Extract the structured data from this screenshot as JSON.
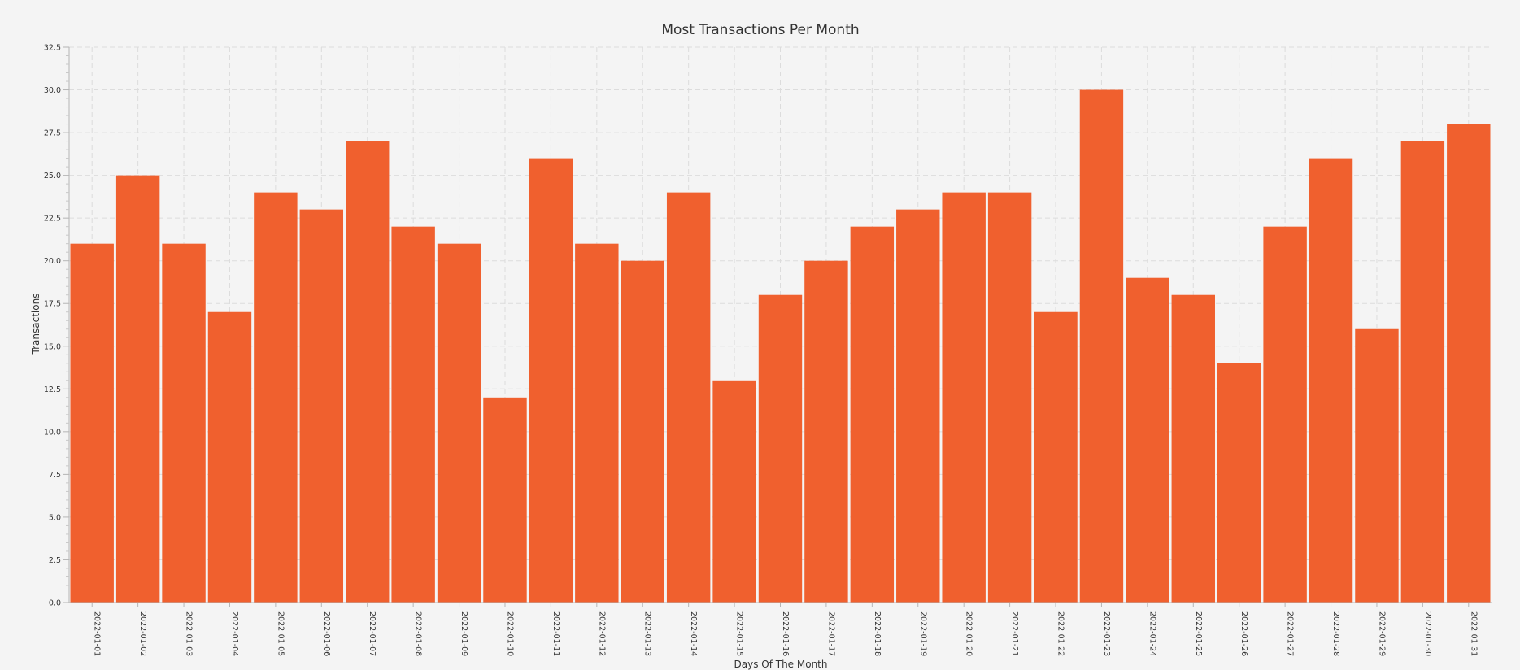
{
  "chart_data": {
    "type": "bar",
    "title": "Most Transactions Per Month",
    "xlabel": "Days Of The Month",
    "ylabel": "Transactions",
    "categories": [
      "2022-01-01",
      "2022-01-02",
      "2022-01-03",
      "2022-01-04",
      "2022-01-05",
      "2022-01-06",
      "2022-01-07",
      "2022-01-08",
      "2022-01-09",
      "2022-01-10",
      "2022-01-11",
      "2022-01-12",
      "2022-01-13",
      "2022-01-14",
      "2022-01-15",
      "2022-01-16",
      "2022-01-17",
      "2022-01-18",
      "2022-01-19",
      "2022-01-20",
      "2022-01-21",
      "2022-01-22",
      "2022-01-23",
      "2022-01-24",
      "2022-01-25",
      "2022-01-26",
      "2022-01-27",
      "2022-01-28",
      "2022-01-29",
      "2022-01-30",
      "2022-01-31"
    ],
    "values": [
      21,
      25,
      21,
      17,
      24,
      23,
      27,
      22,
      21,
      12,
      26,
      21,
      20,
      24,
      13,
      18,
      20,
      22,
      23,
      24,
      24,
      17,
      30,
      19,
      18,
      14,
      22,
      26,
      16,
      27,
      28
    ],
    "ylim": [
      0,
      32.5
    ],
    "yticks": [
      "0.0",
      "2.5",
      "5.0",
      "7.5",
      "10.0",
      "12.5",
      "15.0",
      "17.5",
      "20.0",
      "22.5",
      "25.0",
      "27.5",
      "30.0",
      "32.5"
    ],
    "grid": true,
    "legend": "none",
    "bar_color": "#f0602e"
  }
}
